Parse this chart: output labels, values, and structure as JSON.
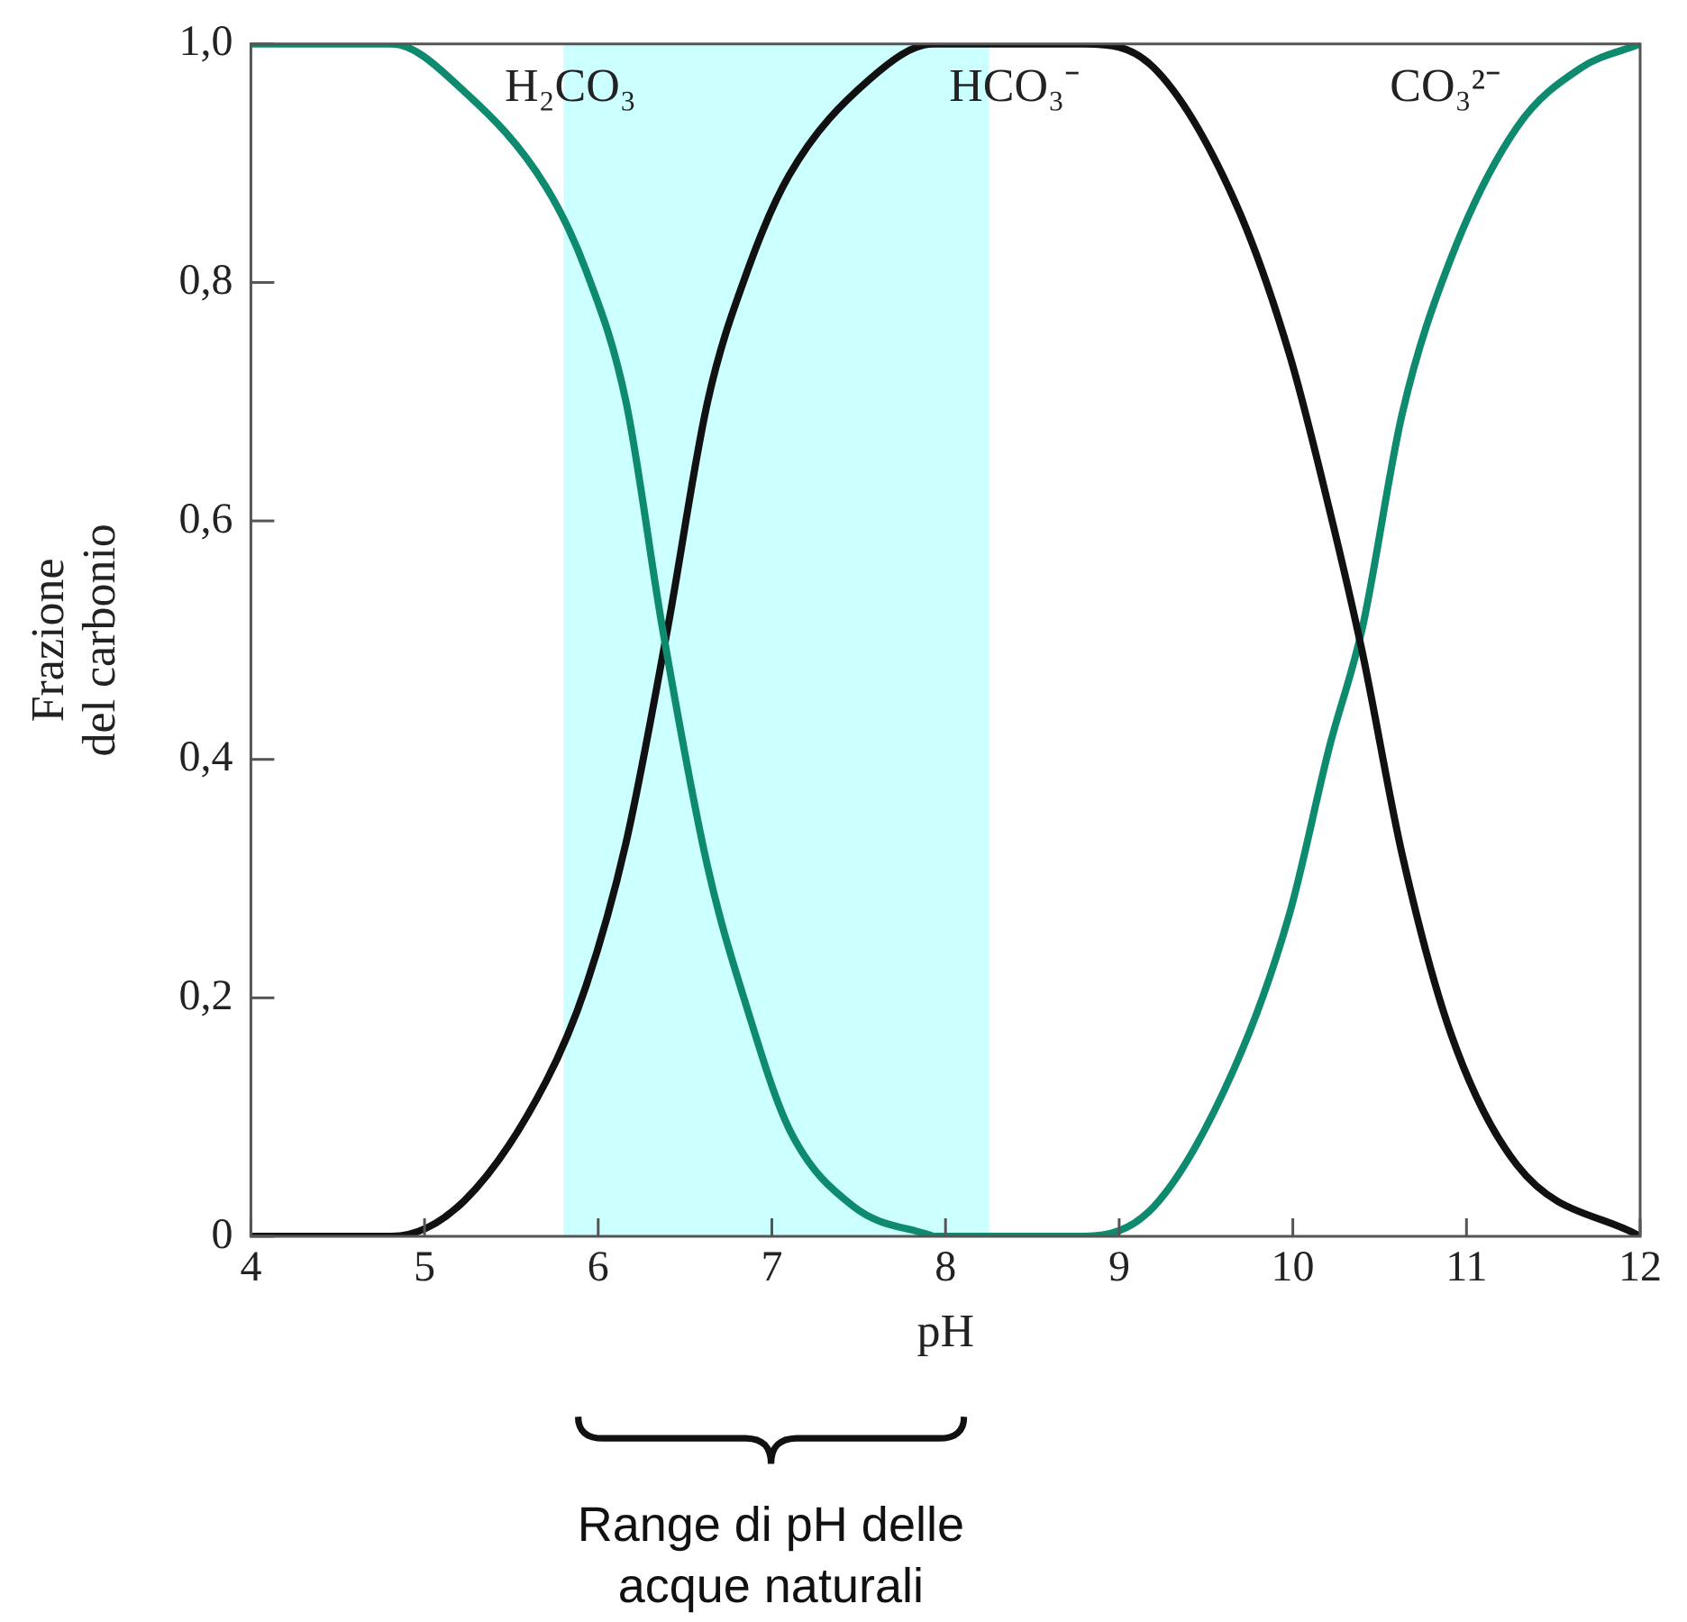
{
  "chart_data": {
    "type": "line",
    "xlabel": "pH",
    "ylabel": "Frazione del carbonio",
    "xlim": [
      4,
      12
    ],
    "xticks": [
      4,
      5,
      6,
      7,
      8,
      9,
      10,
      11,
      12
    ],
    "ylim": [
      0,
      1
    ],
    "yticks": [
      {
        "value": 0,
        "label": "0"
      },
      {
        "value": 0.2,
        "label": "0,2"
      },
      {
        "value": 0.4,
        "label": "0,4"
      },
      {
        "value": 0.6,
        "label": "0,6"
      },
      {
        "value": 0.8,
        "label": "0,8"
      },
      {
        "value": 1,
        "label": "1,0"
      }
    ],
    "grid": false,
    "legend": false,
    "marker": "none",
    "line_style": "solid",
    "series": [
      {
        "name": "H₂CO₃",
        "color": "#0e8a6e",
        "x": [
          4,
          4.81,
          5.23,
          5.7,
          5.93,
          6.16,
          6.37,
          6.63,
          6.86,
          7.1,
          7.47,
          7.93
        ],
        "values": [
          1,
          1,
          0.96,
          0.88,
          0.81,
          0.7,
          0.51,
          0.31,
          0.19,
          0.09,
          0.025,
          0
        ]
      },
      {
        "name": "HCO₃⁻",
        "color": "#111111",
        "x": [
          4,
          4.81,
          5.23,
          5.7,
          5.93,
          6.16,
          6.4,
          6.63,
          6.86,
          7.1,
          7.56,
          7.93,
          8.8,
          9.2,
          9.66,
          9.98,
          10.21,
          10.4,
          10.63,
          10.91,
          11.29,
          12
        ],
        "values": [
          0,
          0,
          0.03,
          0.13,
          0.21,
          0.33,
          0.51,
          0.7,
          0.81,
          0.89,
          0.97,
          1,
          1,
          0.98,
          0.87,
          0.74,
          0.61,
          0.49,
          0.32,
          0.17,
          0.06,
          0
        ]
      },
      {
        "name": "CO₃²⁻",
        "color": "#0e8a6e",
        "x": [
          7.93,
          8.8,
          9.2,
          9.66,
          9.98,
          10.21,
          10.4,
          10.63,
          10.91,
          11.29,
          11.66,
          12
        ],
        "values": [
          0,
          0,
          0.025,
          0.14,
          0.27,
          0.41,
          0.51,
          0.69,
          0.82,
          0.93,
          0.98,
          1
        ]
      }
    ],
    "bands": [
      {
        "axis": "x",
        "from": 5.8,
        "to": 8.25,
        "color": "#ccffff"
      }
    ],
    "annotations": [
      "Range di pH delle acque naturali"
    ]
  }
}
